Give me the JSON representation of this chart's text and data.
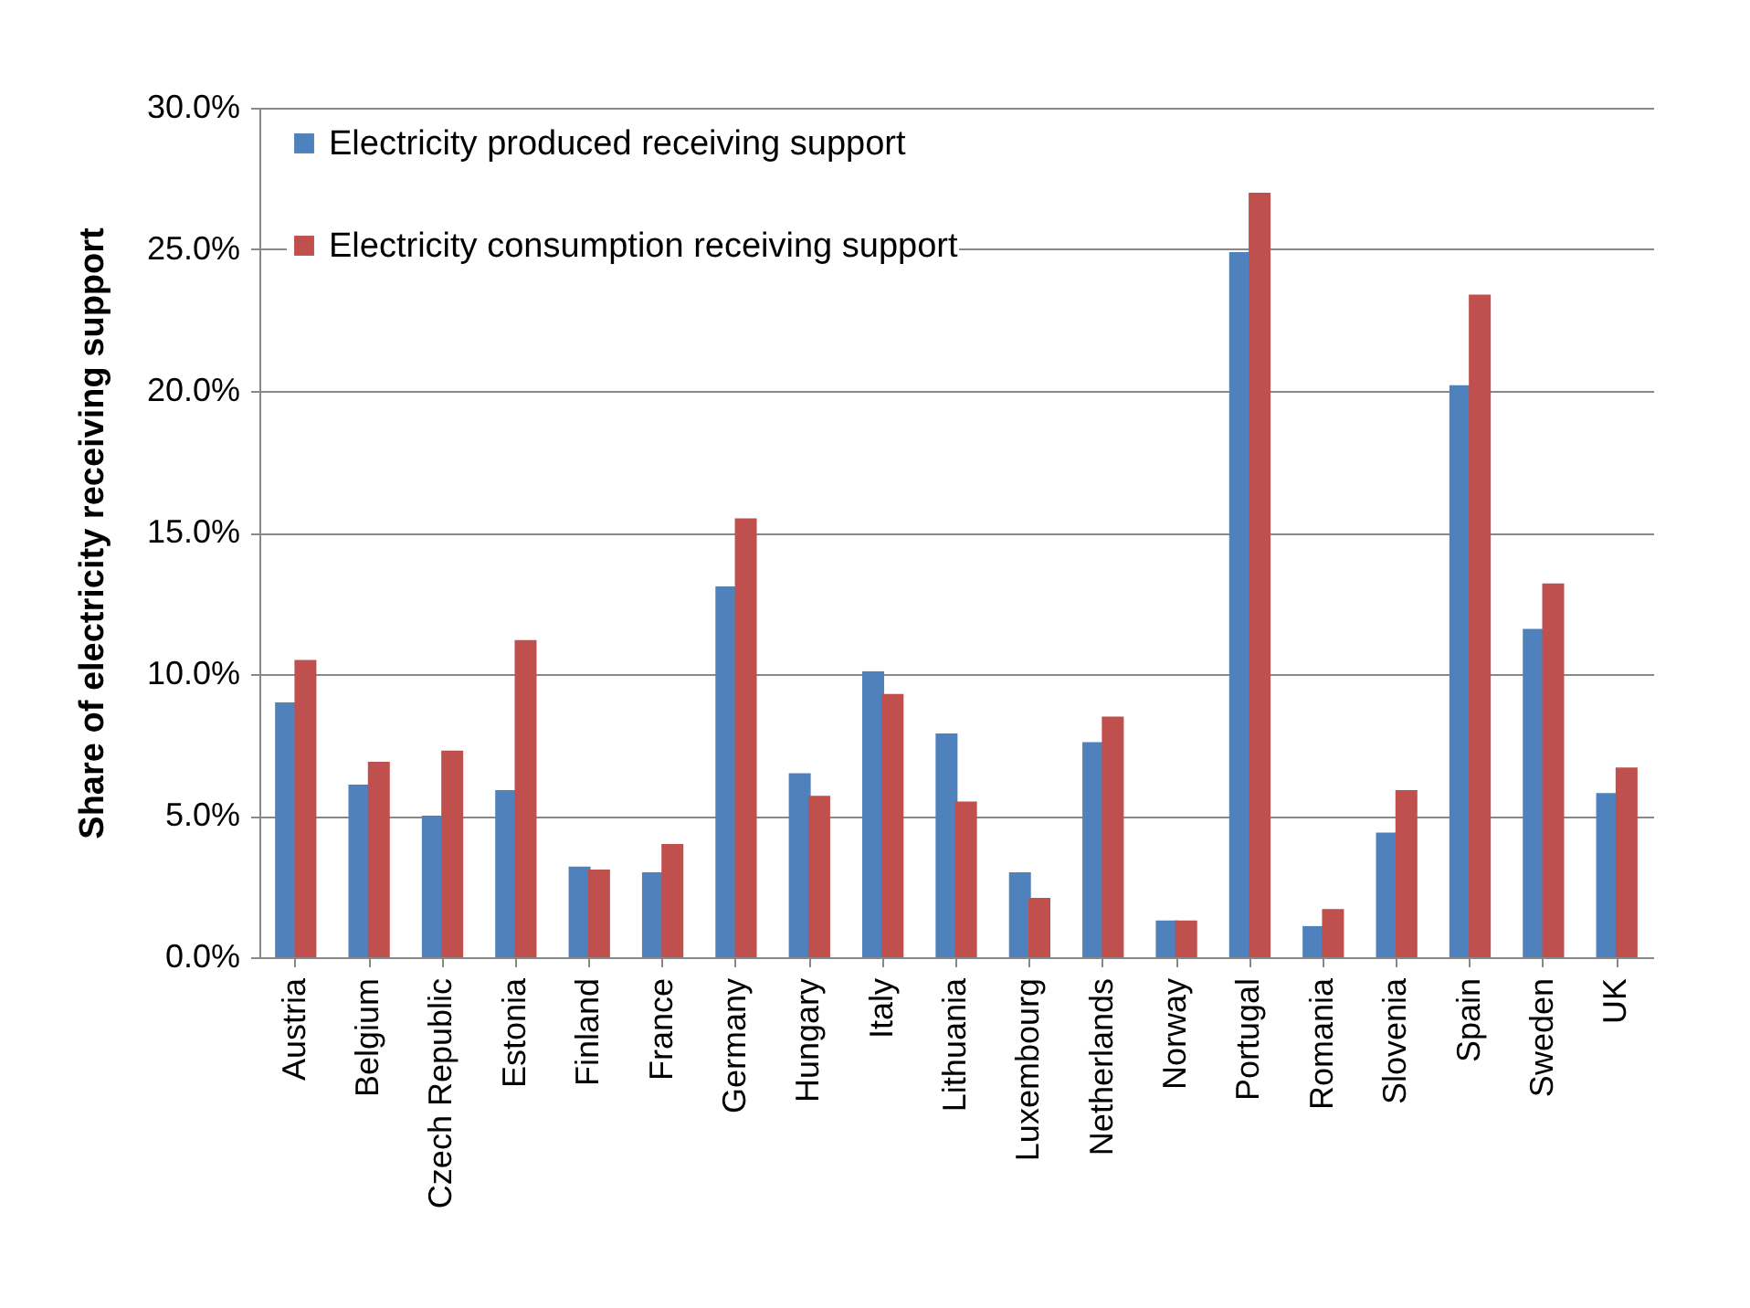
{
  "chart_data": {
    "type": "bar",
    "ylabel": "Share of electricity  receiving  support",
    "categories": [
      "Austria",
      "Belgium",
      "Czech Republic",
      "Estonia",
      "Finland",
      "France",
      "Germany",
      "Hungary",
      "Italy",
      "Lithuania",
      "Luxembourg",
      "Netherlands",
      "Norway",
      "Portugal",
      "Romania",
      "Slovenia",
      "Spain",
      "Sweden",
      "UK"
    ],
    "series": [
      {
        "name": "Electricity produced receiving support",
        "color": "#4f81bd",
        "values": [
          9.0,
          6.1,
          5.0,
          5.9,
          3.2,
          3.0,
          13.1,
          6.5,
          10.1,
          7.9,
          3.0,
          7.6,
          1.3,
          24.9,
          1.1,
          4.4,
          20.2,
          11.6,
          5.8
        ]
      },
      {
        "name": "Electricity consumption receiving support",
        "color": "#c0504d",
        "values": [
          10.5,
          6.9,
          7.3,
          11.2,
          3.1,
          4.0,
          15.5,
          5.7,
          9.3,
          5.5,
          2.1,
          8.5,
          1.3,
          27.0,
          1.7,
          5.9,
          23.4,
          13.2,
          6.7
        ]
      }
    ],
    "ylim": [
      0,
      30
    ],
    "yticks": [
      {
        "value": 0,
        "label": "0.0%"
      },
      {
        "value": 5,
        "label": "5.0%"
      },
      {
        "value": 10,
        "label": "10.0%"
      },
      {
        "value": 15,
        "label": "15.0%"
      },
      {
        "value": 20,
        "label": "20.0%"
      },
      {
        "value": 25,
        "label": "25.0%"
      },
      {
        "value": 30,
        "label": "30.0%"
      }
    ],
    "grid": "y",
    "legend": "top left"
  }
}
